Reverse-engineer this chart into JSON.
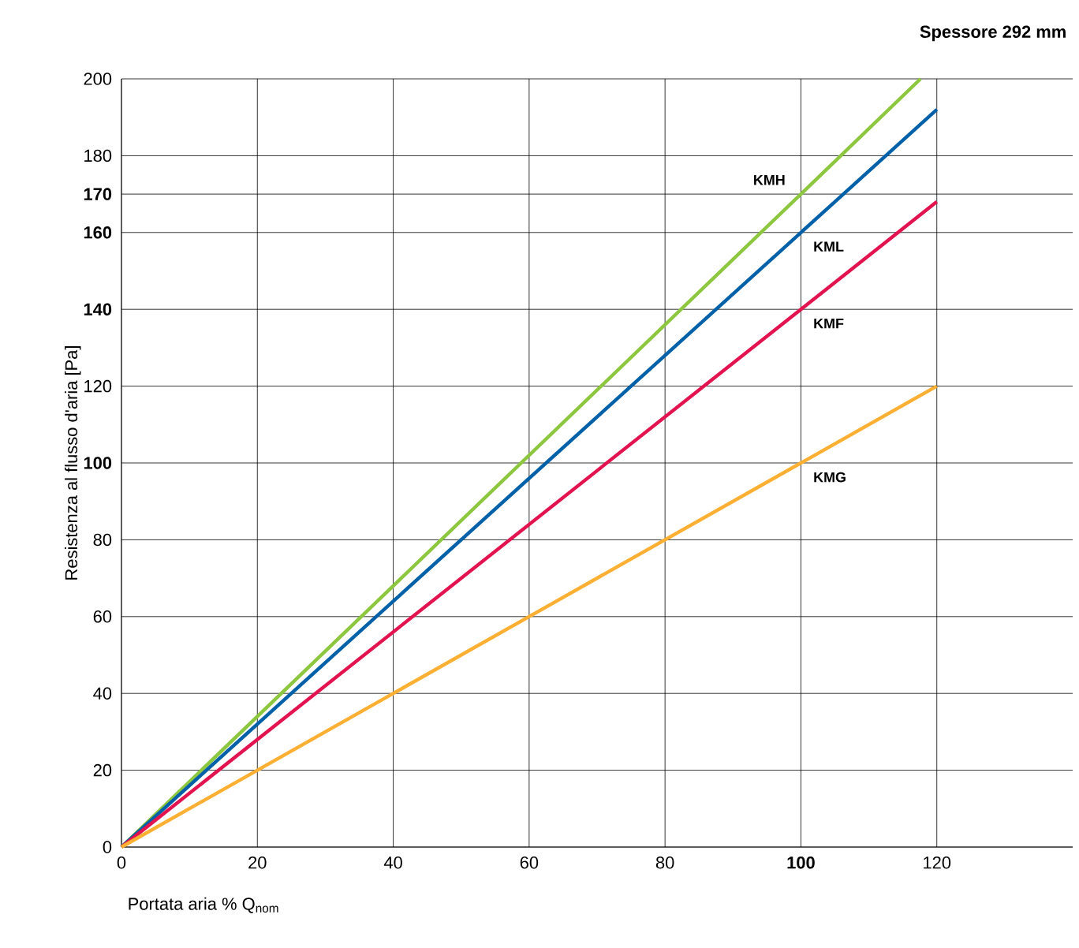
{
  "chart_data": {
    "type": "line",
    "title": "Spessore 292 mm",
    "xlabel": "Portata aria % Q$_{nom}$",
    "ylabel": "Resistenza al flusso d'aria [Pa]",
    "xlim": [
      0,
      140
    ],
    "ylim": [
      0,
      200
    ],
    "xticks": [
      0,
      20,
      40,
      60,
      80,
      {
        "value": 100,
        "label": "**100**"
      },
      120
    ],
    "yticks": [
      0,
      20,
      40,
      60,
      80,
      {
        "value": 100,
        "label": "**100**"
      },
      120,
      {
        "value": 140,
        "label": "**140**"
      },
      {
        "value": 160,
        "label": "**160**"
      },
      {
        "value": 170,
        "label": "**170**"
      },
      180,
      200
    ],
    "grid": true,
    "series": [
      {
        "name": "KMH",
        "color": "#8dc63f",
        "x": [
          0,
          100,
          117.6
        ],
        "values": [
          0,
          170,
          200
        ]
      },
      {
        "name": "KML",
        "color": "#0060a8",
        "x": [
          0,
          100,
          120
        ],
        "values": [
          0,
          160,
          192
        ]
      },
      {
        "name": "KMF",
        "color": "#e2134f",
        "x": [
          0,
          100,
          120
        ],
        "values": [
          0,
          140,
          168
        ]
      },
      {
        "name": "KMG",
        "color": "#fbb034",
        "x": [
          0,
          100,
          120
        ],
        "values": [
          0,
          100,
          120
        ]
      }
    ]
  }
}
